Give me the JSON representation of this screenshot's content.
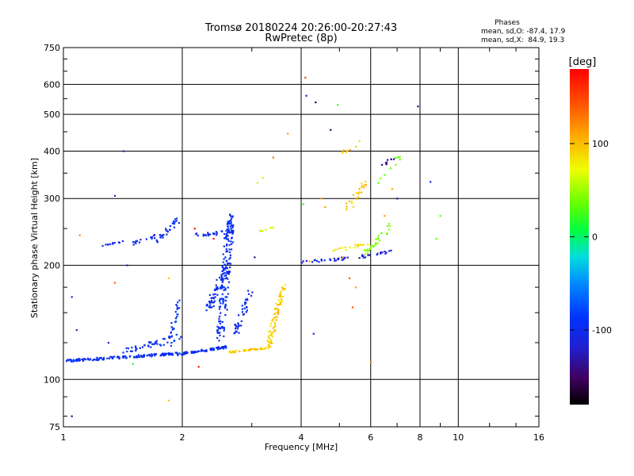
{
  "chart_data": {
    "type": "scatter",
    "title": "Tromsø 20180224 20:26:00-20:27:43",
    "subtitle": "RwPretec (8p)",
    "xlabel": "Frequency [MHz]",
    "ylabel": "Stationary phase Virtual Height [km]",
    "x_scale": "log",
    "y_scale": "log",
    "xlim": [
      1,
      16
    ],
    "ylim": [
      75,
      750
    ],
    "x_ticks": [
      1,
      2,
      4,
      6,
      8,
      10,
      16
    ],
    "y_ticks": [
      75,
      100,
      200,
      300,
      400,
      500,
      600,
      750
    ],
    "grid": true,
    "legend": {
      "title": "Phases",
      "line1": "mean, sd,O: -87.4, 17.9",
      "line2": "mean, sd,X:  84.9, 19.3"
    },
    "colorbar": {
      "label": "[deg]",
      "ticks": [
        -100,
        0,
        100
      ],
      "range": [
        -180,
        180
      ]
    },
    "series": [
      {
        "traces": [
          {
            "x0": 1.02,
            "x1": 1.95,
            "y0": 112,
            "y1": 117,
            "phase": -95,
            "n": 140,
            "jitter": 0.015
          },
          {
            "x0": 1.9,
            "x1": 2.6,
            "y0": 116,
            "y1": 122,
            "phase": -95,
            "n": 70,
            "jitter": 0.015
          },
          {
            "x0": 1.4,
            "x1": 2.0,
            "y0": 118,
            "y1": 130,
            "phase": -95,
            "n": 40,
            "jitter": 0.04
          },
          {
            "x0": 1.85,
            "x1": 1.95,
            "y0": 120,
            "y1": 160,
            "phase": -95,
            "n": 30,
            "jitter": 0.04
          },
          {
            "x0": 2.5,
            "x1": 2.65,
            "y0": 130,
            "y1": 270,
            "phase": -95,
            "n": 160,
            "jitter": 0.08
          },
          {
            "x0": 2.3,
            "x1": 2.6,
            "y0": 150,
            "y1": 200,
            "phase": -100,
            "n": 60,
            "jitter": 0.06
          },
          {
            "x0": 2.7,
            "x1": 3.0,
            "y0": 130,
            "y1": 175,
            "phase": -100,
            "n": 40,
            "jitter": 0.05
          },
          {
            "x0": 1.25,
            "x1": 1.45,
            "y0": 225,
            "y1": 232,
            "phase": -100,
            "n": 12,
            "jitter": 0.01
          },
          {
            "x0": 1.5,
            "x1": 1.7,
            "y0": 228,
            "y1": 238,
            "phase": -100,
            "n": 14,
            "jitter": 0.02
          },
          {
            "x0": 1.7,
            "x1": 1.95,
            "y0": 232,
            "y1": 262,
            "phase": -100,
            "n": 30,
            "jitter": 0.05
          },
          {
            "x0": 2.15,
            "x1": 2.75,
            "y0": 240,
            "y1": 246,
            "phase": -100,
            "n": 30,
            "jitter": 0.02
          },
          {
            "x0": 2.6,
            "x1": 2.7,
            "y0": 250,
            "y1": 275,
            "phase": -100,
            "n": 8,
            "jitter": 0.03
          }
        ]
      },
      {
        "traces": [
          {
            "x0": 2.6,
            "x1": 3.3,
            "y0": 118,
            "y1": 121,
            "phase": 95,
            "n": 40,
            "jitter": 0.012
          },
          {
            "x0": 3.3,
            "x1": 3.6,
            "y0": 122,
            "y1": 175,
            "phase": 90,
            "n": 80,
            "jitter": 0.05
          },
          {
            "x0": 3.1,
            "x1": 3.4,
            "y0": 245,
            "y1": 252,
            "phase": 70,
            "n": 8,
            "jitter": 0.01
          },
          {
            "x0": 4.8,
            "x1": 5.9,
            "y0": 218,
            "y1": 228,
            "phase": 80,
            "n": 20,
            "jitter": 0.02
          },
          {
            "x0": 5.8,
            "x1": 6.8,
            "y0": 215,
            "y1": 255,
            "phase": 40,
            "n": 30,
            "jitter": 0.04
          },
          {
            "x0": 5.2,
            "x1": 5.8,
            "y0": 280,
            "y1": 330,
            "phase": 95,
            "n": 25,
            "jitter": 0.05
          },
          {
            "x0": 5.0,
            "x1": 5.6,
            "y0": 390,
            "y1": 420,
            "phase": 95,
            "n": 8,
            "jitter": 0.03
          },
          {
            "x0": 6.2,
            "x1": 7.2,
            "y0": 330,
            "y1": 390,
            "phase": 40,
            "n": 10,
            "jitter": 0.04
          }
        ]
      },
      {
        "traces": [
          {
            "x0": 4.0,
            "x1": 6.2,
            "y0": 203,
            "y1": 212,
            "phase": -110,
            "n": 30,
            "jitter": 0.02
          },
          {
            "x0": 5.6,
            "x1": 6.8,
            "y0": 210,
            "y1": 218,
            "phase": -115,
            "n": 15,
            "jitter": 0.02
          },
          {
            "x0": 6.3,
            "x1": 7.1,
            "y0": 360,
            "y1": 395,
            "phase": -140,
            "n": 8,
            "jitter": 0.03
          }
        ]
      },
      {
        "points": [
          [
            1.05,
            80,
            -140
          ],
          [
            1.05,
            165,
            -110
          ],
          [
            1.08,
            135,
            -110
          ],
          [
            1.1,
            240,
            120
          ],
          [
            1.35,
            305,
            -110
          ],
          [
            1.42,
            400,
            -110
          ],
          [
            1.35,
            180,
            140
          ],
          [
            1.45,
            200,
            -110
          ],
          [
            1.3,
            125,
            -110
          ],
          [
            1.5,
            110,
            10
          ],
          [
            1.85,
            88,
            95
          ],
          [
            1.85,
            185,
            95
          ],
          [
            2.2,
            108,
            170
          ],
          [
            2.15,
            250,
            170
          ],
          [
            2.4,
            235,
            170
          ],
          [
            3.05,
            210,
            -140
          ],
          [
            3.2,
            340,
            60
          ],
          [
            3.4,
            385,
            130
          ],
          [
            3.5,
            150,
            120
          ],
          [
            3.7,
            445,
            110
          ],
          [
            4.05,
            290,
            20
          ],
          [
            4.1,
            625,
            150
          ],
          [
            4.12,
            560,
            -130
          ],
          [
            4.35,
            538,
            -160
          ],
          [
            4.3,
            132,
            -100
          ],
          [
            4.5,
            300,
            110
          ],
          [
            4.6,
            285,
            110
          ],
          [
            4.75,
            455,
            -150
          ],
          [
            4.95,
            530,
            20
          ],
          [
            5.3,
            185,
            140
          ],
          [
            5.4,
            155,
            140
          ],
          [
            5.5,
            175,
            110
          ],
          [
            6.0,
            111,
            120
          ],
          [
            6.5,
            270,
            110
          ],
          [
            6.8,
            318,
            110
          ],
          [
            7.0,
            300,
            -130
          ],
          [
            7.9,
            525,
            -140
          ],
          [
            8.5,
            332,
            -100
          ],
          [
            9.0,
            270,
            30
          ],
          [
            8.8,
            235,
            30
          ],
          [
            3.1,
            330,
            80
          ],
          [
            4.2,
            205,
            110
          ],
          [
            5.1,
            210,
            120
          ]
        ]
      }
    ]
  }
}
